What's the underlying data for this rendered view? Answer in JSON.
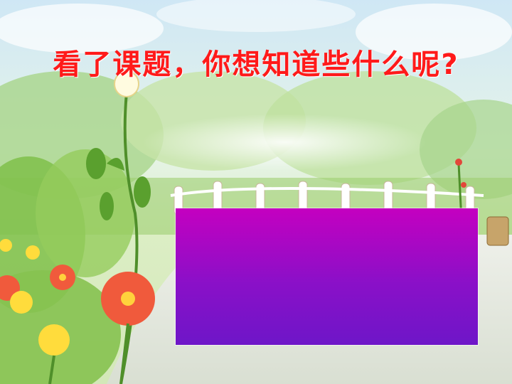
{
  "slide": {
    "title": "看了课题，你想知道些什么呢?",
    "colors": {
      "title": "#ff1a1a",
      "box_top": "#c400c0",
      "box_bottom": "#6e16c8"
    }
  }
}
